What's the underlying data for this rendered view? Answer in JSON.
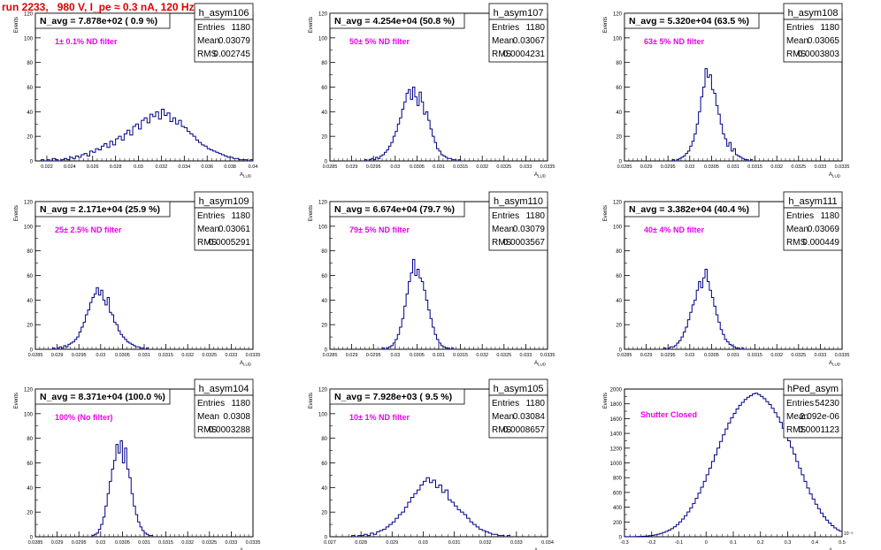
{
  "run_title": "run 2233,   980 V, I_pe ≈ 0.3 nA, 120 Hz",
  "colors": {
    "hist": "#00008b",
    "title": "#dd0000",
    "annotation": "#ee00ee",
    "frame": "#000000"
  },
  "chart_data": [
    {
      "type": "bar",
      "name": "h_asym106",
      "title": "N_avg = 7.878e+02 ( 0.9 %)",
      "annotation": "1± 0.1% ND filter",
      "stats": {
        "entries": "1180",
        "mean": "0.03079",
        "rms": "0.002745"
      },
      "ylabel": "Events",
      "xlabel": "",
      "ylim": [
        0,
        120
      ],
      "xlim": [
        0.021,
        0.04
      ],
      "yticks": [
        "0",
        "20",
        "40",
        "60",
        "80",
        "100",
        "120"
      ],
      "xticks": [
        {
          "v": 0.022,
          "l": "0.022"
        },
        {
          "v": 0.024,
          "l": "0.024"
        },
        {
          "v": 0.026,
          "l": "0.026"
        },
        {
          "v": 0.028,
          "l": "0.028"
        },
        {
          "v": 0.03,
          "l": "0.03"
        },
        {
          "v": 0.032,
          "l": "0.032"
        },
        {
          "v": 0.034,
          "l": "0.034"
        },
        {
          "v": 0.036,
          "l": "0.036"
        },
        {
          "v": 0.038,
          "l": "0.038"
        },
        {
          "v": 0.04,
          "l": "0.04"
        }
      ],
      "bin_start": 0.0215,
      "bin_width": 0.00025,
      "values": [
        1,
        0,
        1,
        0,
        2,
        1,
        0,
        1,
        2,
        1,
        3,
        2,
        4,
        3,
        5,
        6,
        4,
        8,
        7,
        10,
        9,
        12,
        14,
        11,
        16,
        13,
        18,
        20,
        17,
        22,
        25,
        21,
        28,
        30,
        26,
        33,
        35,
        31,
        38,
        36,
        40,
        34,
        42,
        37,
        39,
        32,
        35,
        30,
        33,
        28,
        27,
        24,
        22,
        20,
        17,
        15,
        13,
        12,
        10,
        9,
        8,
        7,
        6,
        5,
        4,
        3,
        3,
        2,
        2,
        1,
        1,
        1,
        0,
        1,
        0,
        0
      ]
    },
    {
      "type": "bar",
      "name": "h_asym107",
      "title": "N_avg = 4.254e+04 (50.8 %)",
      "annotation": "50± 5% ND filter",
      "stats": {
        "entries": "1180",
        "mean": "0.03067",
        "rms": "0.0004231"
      },
      "ylabel": "Events",
      "xlabel": "",
      "ylim": [
        0,
        120
      ],
      "xlim": [
        0.0285,
        0.0335
      ],
      "yticks": [
        "0",
        "20",
        "40",
        "60",
        "80",
        "100",
        "120"
      ],
      "xticks": [
        {
          "v": 0.0285,
          "l": "0.0285"
        },
        {
          "v": 0.029,
          "l": "0.029"
        },
        {
          "v": 0.0295,
          "l": "0.0295"
        },
        {
          "v": 0.03,
          "l": "0.03"
        },
        {
          "v": 0.0305,
          "l": "0.0305"
        },
        {
          "v": 0.031,
          "l": "0.031"
        },
        {
          "v": 0.0315,
          "l": "0.0315"
        },
        {
          "v": 0.032,
          "l": "0.032"
        },
        {
          "v": 0.0325,
          "l": "0.0325"
        },
        {
          "v": 0.033,
          "l": "0.033"
        },
        {
          "v": 0.0335,
          "l": "0.0335"
        }
      ],
      "bin_start": 0.0293,
      "bin_width": 5e-05,
      "values": [
        1,
        0,
        1,
        2,
        1,
        3,
        2,
        4,
        5,
        7,
        9,
        12,
        15,
        20,
        24,
        30,
        35,
        42,
        48,
        55,
        58,
        50,
        60,
        52,
        45,
        56,
        48,
        38,
        40,
        33,
        26,
        20,
        15,
        10,
        8,
        5,
        4,
        3,
        2,
        2,
        1,
        1,
        0,
        1
      ]
    },
    {
      "type": "bar",
      "name": "h_asym108",
      "title": "N_avg = 5.320e+04 (63.5 %)",
      "annotation": "63± 5% ND filter",
      "stats": {
        "entries": "1180",
        "mean": "0.03065",
        "rms": "0.0003803"
      },
      "ylabel": "Events",
      "xlabel": "",
      "ylim": [
        0,
        120
      ],
      "xlim": [
        0.0285,
        0.0335
      ],
      "yticks": [
        "0",
        "20",
        "40",
        "60",
        "80",
        "100",
        "120"
      ],
      "xticks": [
        {
          "v": 0.0285,
          "l": "0.0285"
        },
        {
          "v": 0.029,
          "l": "0.029"
        },
        {
          "v": 0.0295,
          "l": "0.0295"
        },
        {
          "v": 0.03,
          "l": "0.03"
        },
        {
          "v": 0.0305,
          "l": "0.0305"
        },
        {
          "v": 0.031,
          "l": "0.031"
        },
        {
          "v": 0.0315,
          "l": "0.0315"
        },
        {
          "v": 0.032,
          "l": "0.032"
        },
        {
          "v": 0.0325,
          "l": "0.0325"
        },
        {
          "v": 0.033,
          "l": "0.033"
        },
        {
          "v": 0.0335,
          "l": "0.0335"
        }
      ],
      "bin_start": 0.0296,
      "bin_width": 5e-05,
      "values": [
        1,
        0,
        1,
        2,
        3,
        4,
        6,
        8,
        12,
        16,
        22,
        30,
        40,
        52,
        60,
        75,
        68,
        70,
        58,
        55,
        45,
        38,
        30,
        22,
        18,
        12,
        15,
        8,
        10,
        5,
        4,
        3,
        2,
        1,
        1,
        0,
        1
      ]
    },
    {
      "type": "bar",
      "name": "h_asym109",
      "title": "N_avg = 2.171e+04 (25.9 %)",
      "annotation": "25± 2.5% ND filter",
      "stats": {
        "entries": "1180",
        "mean": "0.03061",
        "rms": "0.0005291"
      },
      "ylabel": "Events",
      "xlabel": "",
      "ylim": [
        0,
        120
      ],
      "xlim": [
        0.0285,
        0.0335
      ],
      "yticks": [
        "0",
        "20",
        "40",
        "60",
        "80",
        "100",
        "120"
      ],
      "xticks": [
        {
          "v": 0.0285,
          "l": "0.0285"
        },
        {
          "v": 0.029,
          "l": "0.029"
        },
        {
          "v": 0.0295,
          "l": "0.0295"
        },
        {
          "v": 0.03,
          "l": "0.03"
        },
        {
          "v": 0.0305,
          "l": "0.0305"
        },
        {
          "v": 0.031,
          "l": "0.031"
        },
        {
          "v": 0.0315,
          "l": "0.0315"
        },
        {
          "v": 0.032,
          "l": "0.032"
        },
        {
          "v": 0.0325,
          "l": "0.0325"
        },
        {
          "v": 0.033,
          "l": "0.033"
        },
        {
          "v": 0.0335,
          "l": "0.0335"
        }
      ],
      "bin_start": 0.0289,
      "bin_width": 5e-05,
      "values": [
        1,
        0,
        1,
        2,
        1,
        3,
        2,
        4,
        5,
        6,
        8,
        10,
        14,
        18,
        22,
        28,
        32,
        38,
        42,
        45,
        50,
        44,
        48,
        40,
        36,
        42,
        30,
        28,
        22,
        20,
        15,
        12,
        10,
        8,
        6,
        5,
        4,
        3,
        2,
        2,
        1,
        1,
        0,
        1
      ]
    },
    {
      "type": "bar",
      "name": "h_asym110",
      "title": "N_avg = 6.674e+04 (79.7 %)",
      "annotation": "79± 5% ND filter",
      "stats": {
        "entries": "1180",
        "mean": "0.03079",
        "rms": "0.0003567"
      },
      "ylabel": "Events",
      "xlabel": "",
      "ylim": [
        0,
        120
      ],
      "xlim": [
        0.0285,
        0.0335
      ],
      "yticks": [
        "0",
        "20",
        "40",
        "60",
        "80",
        "100",
        "120"
      ],
      "xticks": [
        {
          "v": 0.0285,
          "l": "0.0285"
        },
        {
          "v": 0.029,
          "l": "0.029"
        },
        {
          "v": 0.0295,
          "l": "0.0295"
        },
        {
          "v": 0.03,
          "l": "0.03"
        },
        {
          "v": 0.0305,
          "l": "0.0305"
        },
        {
          "v": 0.031,
          "l": "0.031"
        },
        {
          "v": 0.0315,
          "l": "0.0315"
        },
        {
          "v": 0.032,
          "l": "0.032"
        },
        {
          "v": 0.0325,
          "l": "0.0325"
        },
        {
          "v": 0.033,
          "l": "0.033"
        },
        {
          "v": 0.0335,
          "l": "0.0335"
        }
      ],
      "bin_start": 0.0297,
      "bin_width": 5e-05,
      "values": [
        1,
        0,
        1,
        2,
        3,
        5,
        8,
        12,
        18,
        25,
        35,
        45,
        55,
        62,
        73,
        60,
        65,
        58,
        55,
        48,
        40,
        32,
        25,
        18,
        12,
        8,
        5,
        3,
        2,
        1,
        1,
        0,
        1
      ]
    },
    {
      "type": "bar",
      "name": "h_asym111",
      "title": "N_avg = 3.382e+04 (40.4 %)",
      "annotation": "40± 4% ND filter",
      "stats": {
        "entries": "1180",
        "mean": "0.03069",
        "rms": "0.000449"
      },
      "ylabel": "Events",
      "xlabel": "",
      "ylim": [
        0,
        120
      ],
      "xlim": [
        0.0285,
        0.0335
      ],
      "yticks": [
        "0",
        "20",
        "40",
        "60",
        "80",
        "100",
        "120"
      ],
      "xticks": [
        {
          "v": 0.0285,
          "l": "0.0285"
        },
        {
          "v": 0.029,
          "l": "0.029"
        },
        {
          "v": 0.0295,
          "l": "0.0295"
        },
        {
          "v": 0.03,
          "l": "0.03"
        },
        {
          "v": 0.0305,
          "l": "0.0305"
        },
        {
          "v": 0.031,
          "l": "0.031"
        },
        {
          "v": 0.0315,
          "l": "0.0315"
        },
        {
          "v": 0.032,
          "l": "0.032"
        },
        {
          "v": 0.0325,
          "l": "0.0325"
        },
        {
          "v": 0.033,
          "l": "0.033"
        },
        {
          "v": 0.0335,
          "l": "0.0335"
        }
      ],
      "bin_start": 0.0294,
      "bin_width": 5e-05,
      "values": [
        1,
        0,
        1,
        2,
        2,
        3,
        5,
        7,
        10,
        14,
        18,
        24,
        30,
        36,
        40,
        48,
        55,
        50,
        58,
        65,
        55,
        48,
        42,
        35,
        28,
        22,
        16,
        12,
        8,
        6,
        4,
        3,
        2,
        1,
        1,
        0,
        1
      ]
    },
    {
      "type": "bar",
      "name": "h_asym104",
      "title": "N_avg = 8.371e+04 (100.0 %)",
      "annotation": "100% (No filter)",
      "stats": {
        "entries": "1180",
        "mean": "0.0308",
        "rms": "0.0003288"
      },
      "ylabel": "Events",
      "xlabel": "",
      "ylim": [
        0,
        120
      ],
      "xlim": [
        0.0285,
        0.0335
      ],
      "yticks": [
        "0",
        "20",
        "40",
        "60",
        "80",
        "100",
        "120"
      ],
      "xticks": [
        {
          "v": 0.0285,
          "l": "0.0285"
        },
        {
          "v": 0.029,
          "l": "0.029"
        },
        {
          "v": 0.0295,
          "l": "0.0295"
        },
        {
          "v": 0.03,
          "l": "0.03"
        },
        {
          "v": 0.0305,
          "l": "0.0305"
        },
        {
          "v": 0.031,
          "l": "0.031"
        },
        {
          "v": 0.0315,
          "l": "0.0315"
        },
        {
          "v": 0.032,
          "l": "0.032"
        },
        {
          "v": 0.0325,
          "l": "0.0325"
        },
        {
          "v": 0.033,
          "l": "0.033"
        },
        {
          "v": 0.0335,
          "l": "0.0335"
        }
      ],
      "bin_start": 0.0298,
      "bin_width": 5e-05,
      "values": [
        1,
        2,
        3,
        6,
        10,
        16,
        25,
        35,
        45,
        55,
        62,
        75,
        68,
        78,
        60,
        72,
        55,
        48,
        35,
        25,
        18,
        12,
        8,
        5,
        3,
        2,
        1,
        1
      ]
    },
    {
      "type": "bar",
      "name": "h_asym105",
      "title": "N_avg = 7.928e+03 ( 9.5 %)",
      "annotation": "10± 1% ND filter",
      "stats": {
        "entries": "1180",
        "mean": "0.03084",
        "rms": "0.0008657"
      },
      "ylabel": "Events",
      "xlabel": "",
      "ylim": [
        0,
        120
      ],
      "xlim": [
        0.027,
        0.034
      ],
      "yticks": [
        "0",
        "20",
        "40",
        "60",
        "80",
        "100",
        "120"
      ],
      "xticks": [
        {
          "v": 0.027,
          "l": "0.027"
        },
        {
          "v": 0.028,
          "l": "0.028"
        },
        {
          "v": 0.029,
          "l": "0.029"
        },
        {
          "v": 0.03,
          "l": "0.03"
        },
        {
          "v": 0.031,
          "l": "0.031"
        },
        {
          "v": 0.032,
          "l": "0.032"
        },
        {
          "v": 0.033,
          "l": "0.033"
        },
        {
          "v": 0.034,
          "l": "0.034"
        }
      ],
      "bin_start": 0.0277,
      "bin_width": 0.0001,
      "values": [
        1,
        0,
        1,
        1,
        2,
        1,
        3,
        2,
        4,
        5,
        6,
        8,
        10,
        12,
        15,
        18,
        20,
        24,
        28,
        32,
        35,
        38,
        42,
        45,
        48,
        44,
        46,
        40,
        42,
        36,
        38,
        30,
        28,
        25,
        22,
        20,
        18,
        15,
        12,
        10,
        8,
        6,
        5,
        4,
        3,
        2,
        2,
        1,
        1,
        0,
        1
      ]
    },
    {
      "type": "bar",
      "name": "hPed_asym",
      "title": "",
      "annotation": "Shutter Closed",
      "stats": {
        "entries": "54230",
        "mean": "2.092e-06",
        "rms": "0.0001123"
      },
      "ylabel": "Events",
      "xlabel": "",
      "ylim": [
        0,
        2000
      ],
      "xlim": [
        -0.3,
        0.5
      ],
      "xmultiplier": "10⁻³",
      "yticks": [
        "0",
        "200",
        "400",
        "600",
        "800",
        "1000",
        "1200",
        "1400",
        "1600",
        "1800",
        "2000"
      ],
      "xticks": [
        {
          "v": -0.3,
          "l": "-0.3"
        },
        {
          "v": -0.2,
          "l": "-0.2"
        },
        {
          "v": -0.1,
          "l": "-0.1"
        },
        {
          "v": 0.0,
          "l": "0"
        },
        {
          "v": 0.1,
          "l": "0.1"
        },
        {
          "v": 0.2,
          "l": "0.2"
        },
        {
          "v": 0.3,
          "l": "0.3"
        },
        {
          "v": 0.4,
          "l": "0.4"
        },
        {
          "v": 0.5,
          "l": "0.5"
        }
      ],
      "bin_start": -0.4,
      "bin_width": 0.01,
      "values": [
        0,
        0,
        0,
        0,
        0,
        0,
        0,
        0,
        0,
        0,
        1,
        1,
        2,
        2,
        3,
        4,
        6,
        8,
        11,
        15,
        20,
        26,
        34,
        45,
        58,
        72,
        90,
        110,
        135,
        165,
        200,
        240,
        285,
        335,
        390,
        450,
        520,
        590,
        670,
        750,
        840,
        930,
        1020,
        1110,
        1200,
        1290,
        1380,
        1460,
        1540,
        1610,
        1670,
        1730,
        1780,
        1820,
        1860,
        1890,
        1910,
        1935,
        1945,
        1925,
        1900,
        1870,
        1830,
        1790,
        1740,
        1680,
        1620,
        1550,
        1470,
        1390,
        1300,
        1210,
        1120,
        1020,
        930,
        840,
        750,
        660,
        580,
        510,
        440,
        380,
        320,
        270,
        225,
        185,
        150,
        120,
        95,
        75,
        58,
        45,
        34,
        26,
        20,
        15,
        11,
        8,
        6,
        4,
        3,
        2,
        2,
        1,
        1,
        1,
        0,
        0,
        0,
        0,
        0,
        0,
        0,
        0,
        0,
        0,
        0,
        0,
        0,
        0,
        0,
        0,
        0,
        0
      ]
    }
  ]
}
